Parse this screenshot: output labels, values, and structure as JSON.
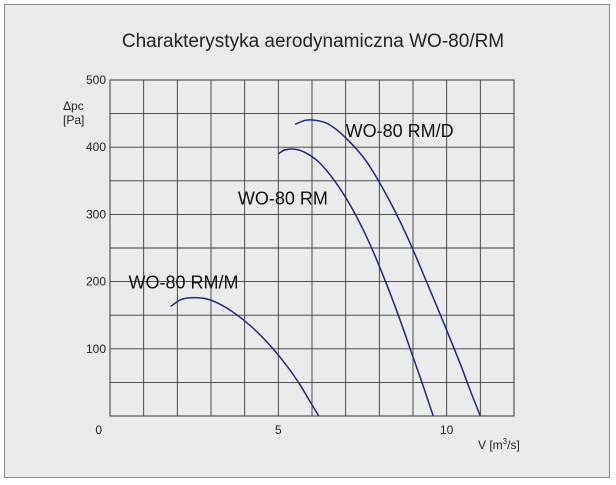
{
  "chart_data": {
    "type": "line",
    "title": "Charakterystyka aerodynamiczna WO-80/RM",
    "ylabel": [
      "Δpc",
      "[Pa]"
    ],
    "xlabel_main": "V [m",
    "xlabel_sup": "3",
    "xlabel_end": "/s]",
    "xlim": [
      0,
      12
    ],
    "ylim": [
      0,
      500
    ],
    "x_ticks": [
      {
        "value": 0,
        "label": "0"
      },
      {
        "value": 5,
        "label": "5"
      },
      {
        "value": 10,
        "label": "10"
      }
    ],
    "y_ticks": [
      {
        "value": 100,
        "label": "100"
      },
      {
        "value": 200,
        "label": "200"
      },
      {
        "value": 300,
        "label": "300"
      },
      {
        "value": 400,
        "label": "400"
      },
      {
        "value": 500,
        "label": "500"
      }
    ],
    "grid": true,
    "grid_x_step": 1,
    "grid_y_step": 50,
    "series": [
      {
        "name": "WO-80 RM/M",
        "color": "#1f2a78",
        "label_at": [
          0.55,
          190
        ],
        "x": [
          1.8,
          2.1,
          2.4,
          2.8,
          3.2,
          3.7,
          4.2,
          4.7,
          5.2,
          5.6,
          5.9,
          6.2
        ],
        "y": [
          163,
          173,
          176,
          175,
          168,
          153,
          133,
          108,
          78,
          50,
          25,
          0
        ]
      },
      {
        "name": "WO-80 RM",
        "color": "#1f2a78",
        "label_at": [
          3.8,
          315
        ],
        "x": [
          5.0,
          5.2,
          5.5,
          5.8,
          6.2,
          6.7,
          7.2,
          7.7,
          8.2,
          8.6,
          9.0,
          9.3,
          9.6
        ],
        "y": [
          390,
          396,
          397,
          392,
          378,
          348,
          308,
          258,
          198,
          145,
          88,
          45,
          0
        ]
      },
      {
        "name": "WO-80 RM/D",
        "color": "#1f2a78",
        "label_at": [
          7.0,
          415
        ],
        "x": [
          5.5,
          5.8,
          6.1,
          6.5,
          7.0,
          7.6,
          8.2,
          8.8,
          9.4,
          9.9,
          10.4,
          10.7,
          11.0
        ],
        "y": [
          434,
          440,
          440,
          434,
          414,
          380,
          330,
          270,
          200,
          140,
          78,
          38,
          0
        ]
      }
    ]
  }
}
